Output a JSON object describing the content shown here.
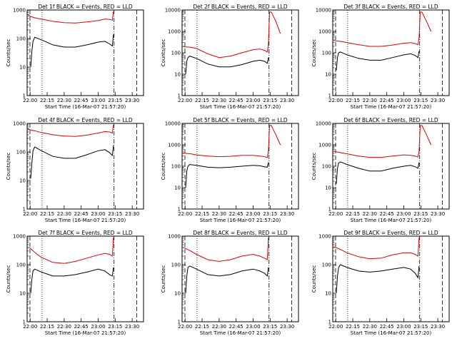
{
  "figure": {
    "background": "#ffffff"
  },
  "chart_data": [
    {
      "type": "line",
      "title": "Det 1f BLACK = Events, RED = LLD",
      "xlabel": "Start Time (16-Mar-07 21:57:20)",
      "ylabel": "Counts/sec",
      "xticks": [
        "22:00",
        "22:15",
        "22:30",
        "22:45",
        "23:00",
        "23:15",
        "23:30"
      ],
      "yticks": [
        "1",
        "10",
        "100",
        "1000"
      ],
      "xlim": [
        "21:57:20",
        "23:40:00"
      ],
      "ylim": [
        1,
        1000
      ],
      "yscale": "log",
      "series": [
        {
          "color": "#000000",
          "x": [
            "22:00:30",
            "22:01:30",
            "22:02:30",
            "22:04:00",
            "22:10:00",
            "22:20:00",
            "22:30:00",
            "22:40:00",
            "22:50:00",
            "23:00:00",
            "23:06:00",
            "23:10:00",
            "23:12:30",
            "23:13:30"
          ],
          "y": [
            10,
            35,
            80,
            110,
            90,
            60,
            50,
            50,
            60,
            75,
            80,
            65,
            55,
            140
          ]
        },
        {
          "color": "#e00000",
          "x": [
            "21:58:00",
            "22:00:00",
            "22:05:00",
            "22:10:00",
            "22:20:00",
            "22:30:00",
            "22:40:00",
            "22:50:00",
            "23:00:00",
            "23:06:00",
            "23:10:00",
            "23:12:30",
            "23:13:30"
          ],
          "y": [
            700,
            600,
            520,
            480,
            400,
            360,
            350,
            380,
            430,
            480,
            470,
            440,
            900
          ]
        }
      ],
      "vlines": {
        "dotted": [
          "22:10:30"
        ],
        "dashed": [
          "21:59:50",
          "23:34:00"
        ],
        "dashdot": [
          "23:14:00"
        ]
      }
    },
    {
      "type": "line",
      "title": "Det 2f BLACK = Events, RED = LLD",
      "xlabel": "Start Time (16-Mar-07 21:57:20)",
      "ylabel": "Counts/sec",
      "xticks": [
        "22:00",
        "22:15",
        "22:30",
        "22:45",
        "23:00",
        "23:15",
        "23:30"
      ],
      "yticks": [
        "1",
        "10",
        "100",
        "1000",
        "10000"
      ],
      "xlim": [
        "21:57:20",
        "23:40:00"
      ],
      "ylim": [
        1,
        10000
      ],
      "yscale": "log",
      "series": [
        {
          "color": "#000000",
          "x": [
            "22:00:30",
            "22:01:30",
            "22:02:30",
            "22:04:00",
            "22:10:00",
            "22:20:00",
            "22:30:00",
            "22:40:00",
            "22:50:00",
            "23:00:00",
            "23:06:00",
            "23:10:00",
            "23:12:30",
            "23:13:30"
          ],
          "y": [
            10,
            40,
            60,
            70,
            55,
            30,
            22,
            22,
            28,
            40,
            45,
            40,
            32,
            60
          ]
        },
        {
          "color": "#e00000",
          "x": [
            "21:58:00",
            "22:00:00",
            "22:05:00",
            "22:10:00",
            "22:20:00",
            "22:30:00",
            "22:40:00",
            "22:50:00",
            "23:00:00",
            "23:06:00",
            "23:10:00",
            "23:12:30",
            "23:13:30",
            "23:14:30",
            "23:16:00",
            "23:20:00",
            "23:24:00"
          ],
          "y": [
            200,
            190,
            180,
            160,
            90,
            60,
            70,
            100,
            140,
            150,
            130,
            110,
            250,
            8000,
            8000,
            3000,
            800
          ]
        }
      ],
      "vlines": {
        "dotted": [
          "22:10:30"
        ],
        "dashed": [
          "21:59:50",
          "23:34:00"
        ],
        "dashdot": [
          "23:14:00"
        ]
      }
    },
    {
      "type": "line",
      "title": "Det 3f BLACK = Events, RED = LLD",
      "xlabel": "Start Time (16-Mar-07 21:57:20)",
      "ylabel": "Counts/sec",
      "xticks": [
        "22:00",
        "22:15",
        "22:30",
        "22:45",
        "23:00",
        "23:15",
        "23:30"
      ],
      "yticks": [
        "1",
        "10",
        "100",
        "1000",
        "10000"
      ],
      "xlim": [
        "21:57:20",
        "23:40:00"
      ],
      "ylim": [
        1,
        10000
      ],
      "yscale": "log",
      "series": [
        {
          "color": "#000000",
          "x": [
            "22:00:30",
            "22:01:30",
            "22:02:30",
            "22:04:00",
            "22:10:00",
            "22:20:00",
            "22:30:00",
            "22:40:00",
            "22:50:00",
            "23:00:00",
            "23:06:00",
            "23:10:00",
            "23:12:30",
            "23:13:30"
          ],
          "y": [
            15,
            60,
            100,
            110,
            80,
            55,
            45,
            45,
            60,
            80,
            90,
            75,
            60,
            120
          ]
        },
        {
          "color": "#e00000",
          "x": [
            "21:58:00",
            "22:00:00",
            "22:05:00",
            "22:10:00",
            "22:20:00",
            "22:30:00",
            "22:40:00",
            "22:50:00",
            "23:00:00",
            "23:06:00",
            "23:10:00",
            "23:12:30",
            "23:13:30",
            "23:14:30",
            "23:16:00",
            "23:20:00",
            "23:24:00"
          ],
          "y": [
            380,
            360,
            340,
            300,
            240,
            200,
            200,
            230,
            280,
            300,
            270,
            240,
            500,
            8000,
            8000,
            3000,
            1000
          ]
        }
      ],
      "vlines": {
        "dotted": [
          "22:10:30"
        ],
        "dashed": [
          "21:59:50",
          "23:34:00"
        ],
        "dashdot": [
          "23:14:00"
        ]
      }
    },
    {
      "type": "line",
      "title": "Det 4f BLACK = Events, RED = LLD",
      "xlabel": "Start Time (16-Mar-07 21:57:20)",
      "ylabel": "Counts/sec",
      "xticks": [
        "22:00",
        "22:15",
        "22:30",
        "22:45",
        "23:00",
        "23:15",
        "23:30"
      ],
      "yticks": [
        "1",
        "10",
        "100",
        "1000"
      ],
      "xlim": [
        "21:57:20",
        "23:40:00"
      ],
      "ylim": [
        1,
        1000
      ],
      "yscale": "log",
      "series": [
        {
          "color": "#000000",
          "x": [
            "22:00:30",
            "22:01:30",
            "22:02:30",
            "22:04:00",
            "22:10:00",
            "22:20:00",
            "22:30:00",
            "22:40:00",
            "22:50:00",
            "23:00:00",
            "23:06:00",
            "23:10:00",
            "23:12:30",
            "23:13:30"
          ],
          "y": [
            12,
            40,
            110,
            150,
            110,
            70,
            60,
            60,
            80,
            110,
            120,
            95,
            75,
            170
          ]
        },
        {
          "color": "#e00000",
          "x": [
            "21:58:00",
            "22:00:00",
            "22:05:00",
            "22:10:00",
            "22:20:00",
            "22:30:00",
            "22:40:00",
            "22:50:00",
            "23:00:00",
            "23:06:00",
            "23:10:00",
            "23:12:30",
            "23:13:30"
          ],
          "y": [
            650,
            600,
            540,
            480,
            400,
            360,
            350,
            390,
            460,
            520,
            500,
            460,
            900
          ]
        }
      ],
      "vlines": {
        "dotted": [
          "22:10:30"
        ],
        "dashed": [
          "21:59:50",
          "23:34:00"
        ],
        "dashdot": [
          "23:14:00"
        ]
      }
    },
    {
      "type": "line",
      "title": "Det 5f BLACK = Events, RED = LLD",
      "xlabel": "Start Time (16-Mar-07 21:57:20)",
      "ylabel": "Counts/sec",
      "xticks": [
        "22:00",
        "22:15",
        "22:30",
        "22:45",
        "23:00",
        "23:15",
        "23:30"
      ],
      "yticks": [
        "1",
        "10",
        "100",
        "1000",
        "10000"
      ],
      "xlim": [
        "21:57:20",
        "23:40:00"
      ],
      "ylim": [
        1,
        10000
      ],
      "yscale": "log",
      "series": [
        {
          "color": "#000000",
          "x": [
            "22:00:30",
            "22:01:30",
            "22:02:30",
            "22:04:00",
            "22:10:00",
            "22:20:00",
            "22:30:00",
            "22:40:00",
            "22:50:00",
            "23:00:00",
            "23:06:00",
            "23:10:00",
            "23:12:30",
            "23:13:30"
          ],
          "y": [
            10,
            60,
            100,
            120,
            110,
            90,
            85,
            90,
            100,
            110,
            105,
            95,
            90,
            150
          ]
        },
        {
          "color": "#e00000",
          "x": [
            "21:58:00",
            "22:00:00",
            "22:05:00",
            "22:10:00",
            "22:20:00",
            "22:30:00",
            "22:40:00",
            "22:50:00",
            "23:00:00",
            "23:06:00",
            "23:10:00",
            "23:12:30",
            "23:13:30",
            "23:14:30",
            "23:16:00",
            "23:20:00",
            "23:24:00"
          ],
          "y": [
            420,
            400,
            380,
            340,
            300,
            280,
            290,
            320,
            320,
            300,
            280,
            260,
            500,
            8000,
            8000,
            3000,
            1000
          ]
        }
      ],
      "vlines": {
        "dotted": [
          "22:10:30"
        ],
        "dashed": [
          "21:59:50",
          "23:34:00"
        ],
        "dashdot": [
          "23:14:00"
        ]
      }
    },
    {
      "type": "line",
      "title": "Det 6f BLACK = Events, RED = LLD",
      "xlabel": "Start Time (16-Mar-07 21:57:20)",
      "ylabel": "Counts/sec",
      "xticks": [
        "22:00",
        "22:15",
        "22:30",
        "22:45",
        "23:00",
        "23:15",
        "23:30"
      ],
      "yticks": [
        "1",
        "10",
        "100",
        "1000",
        "10000"
      ],
      "xlim": [
        "21:57:20",
        "23:40:00"
      ],
      "ylim": [
        1,
        10000
      ],
      "yscale": "log",
      "series": [
        {
          "color": "#000000",
          "x": [
            "22:00:30",
            "22:01:30",
            "22:02:30",
            "22:04:00",
            "22:10:00",
            "22:20:00",
            "22:30:00",
            "22:40:00",
            "22:50:00",
            "23:00:00",
            "23:06:00",
            "23:10:00",
            "23:12:30",
            "23:13:30"
          ],
          "y": [
            15,
            80,
            140,
            160,
            120,
            80,
            60,
            60,
            80,
            100,
            110,
            95,
            80,
            150
          ]
        },
        {
          "color": "#e00000",
          "x": [
            "21:58:00",
            "22:00:00",
            "22:05:00",
            "22:10:00",
            "22:20:00",
            "22:30:00",
            "22:40:00",
            "22:50:00",
            "23:00:00",
            "23:06:00",
            "23:10:00",
            "23:12:30",
            "23:13:30",
            "23:14:30",
            "23:16:00",
            "23:20:00",
            "23:24:00"
          ],
          "y": [
            500,
            480,
            420,
            380,
            300,
            260,
            260,
            300,
            340,
            320,
            300,
            270,
            500,
            8000,
            8000,
            3000,
            1000
          ]
        }
      ],
      "vlines": {
        "dotted": [
          "22:10:30"
        ],
        "dashed": [
          "21:59:50",
          "23:34:00"
        ],
        "dashdot": [
          "23:14:00"
        ]
      }
    },
    {
      "type": "line",
      "title": "Det 7f BLACK = Events, RED = LLD",
      "xlabel": "Start Time (16-Mar-07 21:57:20)",
      "ylabel": "Counts/sec",
      "xticks": [
        "22:00",
        "22:15",
        "22:30",
        "22:45",
        "23:00",
        "23:15",
        "23:30"
      ],
      "yticks": [
        "1",
        "10",
        "100",
        "1000"
      ],
      "xlim": [
        "21:57:20",
        "23:40:00"
      ],
      "ylim": [
        1,
        1000
      ],
      "yscale": "log",
      "series": [
        {
          "color": "#000000",
          "x": [
            "22:00:30",
            "22:01:30",
            "22:02:30",
            "22:04:00",
            "22:10:00",
            "22:20:00",
            "22:30:00",
            "22:40:00",
            "22:50:00",
            "23:00:00",
            "23:06:00",
            "23:10:00",
            "23:12:30",
            "23:13:30"
          ],
          "y": [
            10,
            30,
            60,
            70,
            55,
            40,
            40,
            45,
            55,
            70,
            60,
            45,
            40,
            80
          ]
        },
        {
          "color": "#e00000",
          "x": [
            "21:58:00",
            "22:00:00",
            "22:05:00",
            "22:10:00",
            "22:20:00",
            "22:30:00",
            "22:40:00",
            "22:50:00",
            "23:00:00",
            "23:06:00",
            "23:10:00",
            "23:12:30",
            "23:13:30"
          ],
          "y": [
            400,
            380,
            250,
            180,
            120,
            110,
            130,
            170,
            220,
            250,
            230,
            200,
            900
          ]
        }
      ],
      "vlines": {
        "dotted": [
          "22:10:30"
        ],
        "dashed": [
          "21:59:50",
          "23:34:00"
        ],
        "dashdot": [
          "23:14:00"
        ]
      }
    },
    {
      "type": "line",
      "title": "Det 8f BLACK = Events, RED = LLD",
      "xlabel": "Start Time (16-Mar-07 21:57:20)",
      "ylabel": "Counts/sec",
      "xticks": [
        "22:00",
        "22:15",
        "22:30",
        "22:45",
        "23:00",
        "23:15",
        "23:30"
      ],
      "yticks": [
        "1",
        "10",
        "100",
        "1000"
      ],
      "xlim": [
        "21:57:20",
        "23:40:00"
      ],
      "ylim": [
        1,
        1000
      ],
      "yscale": "log",
      "series": [
        {
          "color": "#000000",
          "x": [
            "22:00:30",
            "22:01:30",
            "22:02:30",
            "22:04:00",
            "22:10:00",
            "22:20:00",
            "22:30:00",
            "22:40:00",
            "22:50:00",
            "23:00:00",
            "23:06:00",
            "23:10:00",
            "23:12:30",
            "23:13:30"
          ],
          "y": [
            10,
            40,
            80,
            90,
            70,
            45,
            40,
            45,
            60,
            70,
            60,
            50,
            40,
            80
          ]
        },
        {
          "color": "#e00000",
          "x": [
            "21:58:00",
            "22:00:00",
            "22:05:00",
            "22:10:00",
            "22:20:00",
            "22:30:00",
            "22:40:00",
            "22:50:00",
            "23:00:00",
            "23:06:00",
            "23:10:00",
            "23:12:30",
            "23:13:30"
          ],
          "y": [
            400,
            380,
            300,
            230,
            150,
            130,
            150,
            200,
            230,
            200,
            170,
            150,
            900
          ]
        }
      ],
      "vlines": {
        "dotted": [
          "22:10:30"
        ],
        "dashed": [
          "21:59:50",
          "23:34:00"
        ],
        "dashdot": [
          "23:14:00"
        ]
      }
    },
    {
      "type": "line",
      "title": "Det 9f BLACK = Events, RED = LLD",
      "xlabel": "Start Time (16-Mar-07 21:57:20)",
      "ylabel": "Counts/sec",
      "xticks": [
        "22:00",
        "22:15",
        "22:30",
        "22:45",
        "23:00",
        "23:15",
        "23:30"
      ],
      "yticks": [
        "1",
        "10",
        "100",
        "1000"
      ],
      "xlim": [
        "21:57:20",
        "23:40:00"
      ],
      "ylim": [
        1,
        1000
      ],
      "yscale": "log",
      "series": [
        {
          "color": "#000000",
          "x": [
            "22:00:30",
            "22:01:30",
            "22:02:30",
            "22:04:00",
            "22:10:00",
            "22:20:00",
            "22:30:00",
            "22:40:00",
            "22:50:00",
            "23:00:00",
            "23:06:00",
            "23:10:00",
            "23:12:30",
            "23:13:30"
          ],
          "y": [
            10,
            40,
            80,
            100,
            80,
            60,
            55,
            60,
            70,
            80,
            70,
            50,
            35,
            90
          ]
        },
        {
          "color": "#e00000",
          "x": [
            "21:58:00",
            "22:00:00",
            "22:05:00",
            "22:10:00",
            "22:20:00",
            "22:30:00",
            "22:40:00",
            "22:50:00",
            "23:00:00",
            "23:06:00",
            "23:10:00",
            "23:12:30",
            "23:13:30"
          ],
          "y": [
            420,
            400,
            330,
            260,
            190,
            160,
            170,
            220,
            260,
            260,
            230,
            200,
            900
          ]
        }
      ],
      "vlines": {
        "dotted": [
          "22:10:30"
        ],
        "dashed": [
          "21:59:50",
          "23:34:00"
        ],
        "dashdot": [
          "23:14:00"
        ]
      }
    }
  ]
}
